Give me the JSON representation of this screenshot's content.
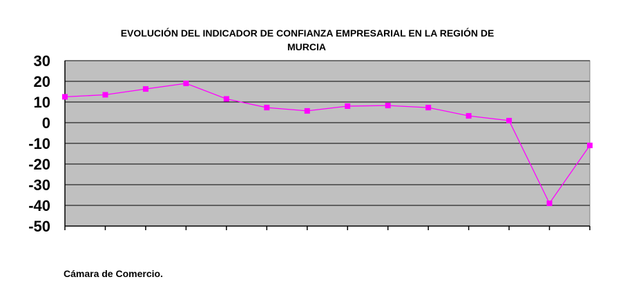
{
  "title_line1": "EVOLUCIÓN DEL INDICADOR DE CONFIANZA EMPRESARIAL EN LA REGIÓN DE",
  "title_line2": "MURCIA",
  "source": "Cámara de Comercio.",
  "colors": {
    "plot_bg": "#c0c0c0",
    "series": "#ff00ff",
    "grid": "#000000"
  },
  "chart_data": {
    "type": "line",
    "title": "EVOLUCIÓN DEL INDICADOR DE CONFIANZA EMPRESARIAL EN LA REGIÓN DE MURCIA",
    "xlabel": "",
    "ylabel": "",
    "ylim": [
      -50,
      30
    ],
    "yticks": [
      30,
      20,
      10,
      0,
      -10,
      -20,
      -30,
      -40,
      -50
    ],
    "grid": true,
    "legend": "none",
    "categories": [
      "",
      "",
      "",
      "",
      "",
      "",
      "",
      "",
      "",
      "",
      "",
      "",
      "",
      ""
    ],
    "series": [
      {
        "values": [
          12.5,
          13.5,
          16.3,
          19,
          11.5,
          7.3,
          5.7,
          8,
          8.3,
          7.3,
          3.3,
          1,
          -39,
          -11
        ]
      }
    ]
  }
}
